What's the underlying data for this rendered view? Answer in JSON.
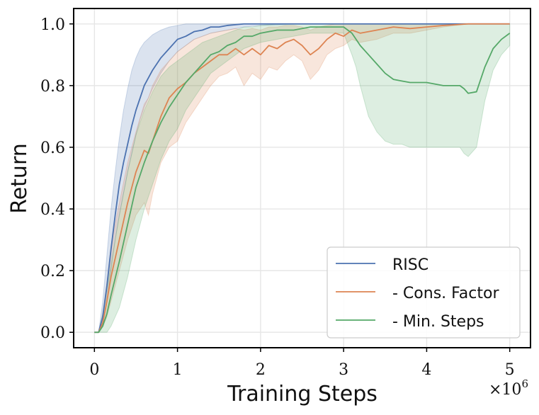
{
  "chart_data": {
    "type": "line",
    "title": "",
    "xlabel": "Training Steps",
    "ylabel": "Return",
    "x_multiplier_label": "×10",
    "x_multiplier_exp": "6",
    "xlim": [
      -0.25,
      5.25
    ],
    "ylim": [
      -0.05,
      1.05
    ],
    "xticks": [
      0,
      1,
      2,
      3,
      4,
      5
    ],
    "xtick_labels": [
      "0",
      "1",
      "2",
      "3",
      "4",
      "5"
    ],
    "yticks": [
      0.0,
      0.2,
      0.4,
      0.6,
      0.8,
      1.0
    ],
    "ytick_labels": [
      "0.0",
      "0.2",
      "0.4",
      "0.6",
      "0.8",
      "1.0"
    ],
    "grid": true,
    "legend_position": "bottom-right",
    "series": [
      {
        "name": "RISC",
        "color": "#4c72b0",
        "x": [
          0,
          0.05,
          0.1,
          0.15,
          0.2,
          0.25,
          0.3,
          0.35,
          0.4,
          0.45,
          0.5,
          0.55,
          0.6,
          0.7,
          0.8,
          0.9,
          1.0,
          1.1,
          1.2,
          1.3,
          1.4,
          1.5,
          1.6,
          1.8,
          2.0,
          2.5,
          3.0,
          3.5,
          4.0,
          4.5,
          5.0
        ],
        "values": [
          0,
          0,
          0.05,
          0.15,
          0.27,
          0.38,
          0.48,
          0.55,
          0.61,
          0.67,
          0.72,
          0.76,
          0.8,
          0.85,
          0.89,
          0.92,
          0.95,
          0.96,
          0.975,
          0.98,
          0.99,
          0.99,
          0.995,
          1.0,
          1.0,
          1.0,
          1.0,
          1.0,
          1.0,
          1.0,
          1.0
        ],
        "lower": [
          0,
          0,
          0.03,
          0.1,
          0.2,
          0.3,
          0.38,
          0.45,
          0.52,
          0.58,
          0.64,
          0.69,
          0.73,
          0.79,
          0.84,
          0.88,
          0.91,
          0.93,
          0.95,
          0.96,
          0.97,
          0.975,
          0.98,
          0.99,
          0.995,
          1.0,
          1.0,
          1.0,
          1.0,
          1.0,
          1.0
        ],
        "upper": [
          0,
          0,
          0.1,
          0.25,
          0.4,
          0.52,
          0.63,
          0.72,
          0.79,
          0.85,
          0.89,
          0.92,
          0.94,
          0.965,
          0.98,
          0.99,
          0.995,
          1.0,
          1.0,
          1.0,
          1.0,
          1.0,
          1.0,
          1.0,
          1.0,
          1.0,
          1.0,
          1.0,
          1.0,
          1.0,
          1.0
        ]
      },
      {
        "name": "- Cons. Factor",
        "color": "#dd8452",
        "x": [
          0,
          0.05,
          0.1,
          0.15,
          0.2,
          0.3,
          0.4,
          0.5,
          0.6,
          0.65,
          0.7,
          0.8,
          0.9,
          1.0,
          1.1,
          1.2,
          1.3,
          1.4,
          1.5,
          1.6,
          1.7,
          1.8,
          1.9,
          2.0,
          2.1,
          2.2,
          2.3,
          2.4,
          2.5,
          2.6,
          2.7,
          2.8,
          2.9,
          3.0,
          3.1,
          3.2,
          3.4,
          3.6,
          3.8,
          4.0,
          4.2,
          4.5,
          4.8,
          5.0
        ],
        "values": [
          0,
          0,
          0.03,
          0.1,
          0.18,
          0.3,
          0.42,
          0.52,
          0.59,
          0.58,
          0.62,
          0.7,
          0.76,
          0.79,
          0.81,
          0.84,
          0.86,
          0.88,
          0.9,
          0.9,
          0.92,
          0.9,
          0.92,
          0.9,
          0.93,
          0.92,
          0.94,
          0.95,
          0.93,
          0.9,
          0.92,
          0.95,
          0.97,
          0.96,
          0.98,
          0.97,
          0.98,
          0.99,
          0.985,
          0.99,
          0.995,
          1.0,
          1.0,
          1.0
        ],
        "lower": [
          0,
          0,
          0.02,
          0.05,
          0.1,
          0.2,
          0.3,
          0.38,
          0.42,
          0.38,
          0.45,
          0.55,
          0.6,
          0.62,
          0.68,
          0.72,
          0.76,
          0.8,
          0.83,
          0.84,
          0.86,
          0.8,
          0.84,
          0.82,
          0.86,
          0.85,
          0.88,
          0.9,
          0.88,
          0.82,
          0.85,
          0.9,
          0.92,
          0.93,
          0.95,
          0.94,
          0.95,
          0.97,
          0.97,
          0.98,
          0.99,
          1.0,
          1.0,
          1.0
        ],
        "upper": [
          0,
          0,
          0.06,
          0.16,
          0.28,
          0.42,
          0.55,
          0.65,
          0.74,
          0.76,
          0.8,
          0.85,
          0.88,
          0.91,
          0.93,
          0.95,
          0.96,
          0.97,
          0.975,
          0.98,
          0.985,
          0.98,
          0.985,
          0.98,
          0.99,
          0.99,
          0.995,
          0.995,
          0.99,
          0.98,
          0.99,
          0.995,
          1.0,
          1.0,
          1.0,
          1.0,
          1.0,
          1.0,
          1.0,
          1.0,
          1.0,
          1.0,
          1.0,
          1.0
        ]
      },
      {
        "name": "- Min. Steps",
        "color": "#55a868",
        "x": [
          0,
          0.05,
          0.1,
          0.15,
          0.2,
          0.3,
          0.4,
          0.5,
          0.6,
          0.7,
          0.8,
          0.9,
          1.0,
          1.1,
          1.2,
          1.3,
          1.4,
          1.5,
          1.6,
          1.7,
          1.8,
          1.9,
          2.0,
          2.2,
          2.4,
          2.6,
          2.8,
          3.0,
          3.1,
          3.15,
          3.2,
          3.3,
          3.4,
          3.5,
          3.6,
          3.7,
          3.8,
          4.0,
          4.2,
          4.4,
          4.45,
          4.5,
          4.6,
          4.7,
          4.8,
          4.9,
          5.0
        ],
        "values": [
          0,
          0,
          0.02,
          0.06,
          0.12,
          0.23,
          0.35,
          0.47,
          0.55,
          0.62,
          0.68,
          0.73,
          0.77,
          0.81,
          0.84,
          0.87,
          0.9,
          0.91,
          0.93,
          0.94,
          0.96,
          0.96,
          0.97,
          0.98,
          0.98,
          0.99,
          0.99,
          0.99,
          0.97,
          0.95,
          0.93,
          0.9,
          0.87,
          0.84,
          0.82,
          0.815,
          0.81,
          0.81,
          0.8,
          0.8,
          0.79,
          0.775,
          0.78,
          0.86,
          0.92,
          0.95,
          0.97
        ],
        "lower": [
          0,
          0,
          0.0,
          0.0,
          0.02,
          0.08,
          0.18,
          0.3,
          0.4,
          0.48,
          0.56,
          0.62,
          0.66,
          0.72,
          0.76,
          0.8,
          0.84,
          0.86,
          0.88,
          0.9,
          0.92,
          0.93,
          0.94,
          0.95,
          0.96,
          0.97,
          0.97,
          0.97,
          0.9,
          0.86,
          0.8,
          0.7,
          0.65,
          0.62,
          0.61,
          0.61,
          0.6,
          0.6,
          0.6,
          0.6,
          0.58,
          0.57,
          0.6,
          0.75,
          0.85,
          0.9,
          0.93
        ],
        "upper": [
          0,
          0,
          0.06,
          0.14,
          0.22,
          0.38,
          0.52,
          0.64,
          0.72,
          0.78,
          0.83,
          0.86,
          0.88,
          0.9,
          0.92,
          0.94,
          0.95,
          0.96,
          0.97,
          0.98,
          0.99,
          0.99,
          0.995,
          1.0,
          1.0,
          1.0,
          1.0,
          1.0,
          1.0,
          1.0,
          1.0,
          1.0,
          1.0,
          1.0,
          1.0,
          1.0,
          1.0,
          1.0,
          1.0,
          1.0,
          1.0,
          1.0,
          1.0,
          1.0,
          1.0,
          1.0,
          1.0
        ]
      }
    ]
  }
}
